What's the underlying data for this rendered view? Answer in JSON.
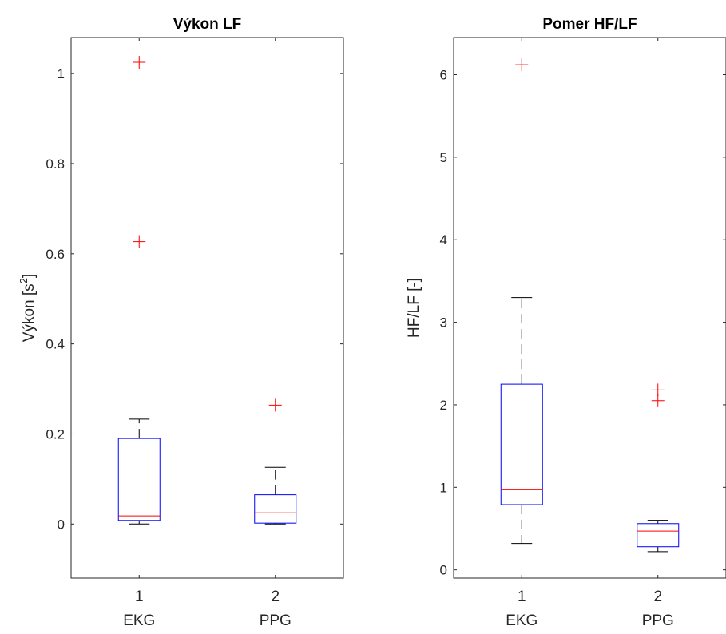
{
  "chart_data": [
    {
      "type": "box",
      "title": "Výkon LF",
      "ylabel_main": "Výkon [s",
      "ylabel_sup": "2",
      "ylabel_close": "]",
      "ylim": [
        -0.12,
        1.08
      ],
      "yticks": [
        {
          "value": 0,
          "label": "0"
        },
        {
          "value": 0.2,
          "label": "0.2"
        },
        {
          "value": 0.4,
          "label": "0.4"
        },
        {
          "value": 0.6,
          "label": "0.6"
        },
        {
          "value": 0.8,
          "label": "0.8"
        },
        {
          "value": 1,
          "label": "1"
        }
      ],
      "categories": [
        {
          "position": 1,
          "tick": "1",
          "name": "EKG"
        },
        {
          "position": 2,
          "tick": "2",
          "name": "PPG"
        }
      ],
      "boxes": [
        {
          "position": 1,
          "whisker_low": 0.0,
          "q1": 0.008,
          "median": 0.018,
          "q3": 0.19,
          "whisker_high": 0.233,
          "outliers": [
            0.627,
            1.025
          ]
        },
        {
          "position": 2,
          "whisker_low": 0.0,
          "q1": 0.002,
          "median": 0.025,
          "q3": 0.065,
          "whisker_high": 0.126,
          "outliers": [
            0.264
          ]
        }
      ],
      "colors": {
        "box": "#0000ff",
        "median": "#ff0000",
        "whisker": "#000000",
        "outlier": "#ff0000",
        "axis": "#262626"
      }
    },
    {
      "type": "box",
      "title": "Pomer HF/LF",
      "ylabel_main": "HF/LF [-]",
      "ylabel_sup": "",
      "ylabel_close": "",
      "ylim": [
        -0.1,
        6.45
      ],
      "yticks": [
        {
          "value": 0,
          "label": "0"
        },
        {
          "value": 1,
          "label": "1"
        },
        {
          "value": 2,
          "label": "2"
        },
        {
          "value": 3,
          "label": "3"
        },
        {
          "value": 4,
          "label": "4"
        },
        {
          "value": 5,
          "label": "5"
        },
        {
          "value": 6,
          "label": "6"
        }
      ],
      "categories": [
        {
          "position": 1,
          "tick": "1",
          "name": "EKG"
        },
        {
          "position": 2,
          "tick": "2",
          "name": "PPG"
        }
      ],
      "boxes": [
        {
          "position": 1,
          "whisker_low": 0.32,
          "q1": 0.79,
          "median": 0.97,
          "q3": 2.25,
          "whisker_high": 3.3,
          "outliers": [
            6.12
          ]
        },
        {
          "position": 2,
          "whisker_low": 0.22,
          "q1": 0.28,
          "median": 0.47,
          "q3": 0.56,
          "whisker_high": 0.6,
          "outliers": [
            2.05,
            2.18
          ]
        }
      ],
      "colors": {
        "box": "#0000ff",
        "median": "#ff0000",
        "whisker": "#000000",
        "outlier": "#ff0000",
        "axis": "#262626"
      }
    }
  ]
}
